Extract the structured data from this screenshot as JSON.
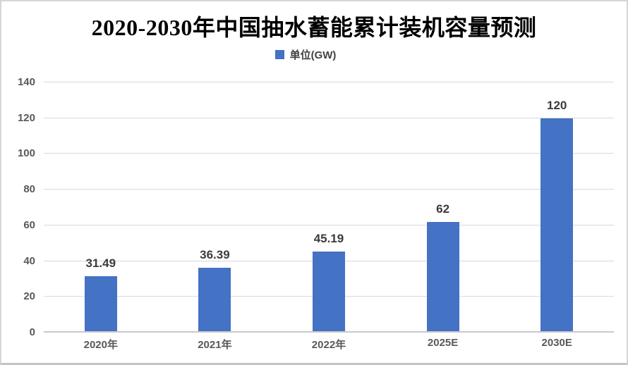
{
  "title": "2020-2030年中国抽水蓄能累计装机容量预测",
  "legend": {
    "label": "单位(GW)",
    "swatch_color": "#4472C4"
  },
  "chart_data": {
    "type": "bar",
    "title": "2020-2030年中国抽水蓄能累计装机容量预测",
    "categories": [
      "2020年",
      "2021年",
      "2022年",
      "2025E",
      "2030E"
    ],
    "values": [
      31.49,
      36.39,
      45.19,
      62,
      120
    ],
    "data_labels": [
      "31.49",
      "36.39",
      "45.19",
      "62",
      "120"
    ],
    "xlabel": "",
    "ylabel": "",
    "ylim": [
      0,
      140
    ],
    "yticks": [
      0,
      20,
      40,
      60,
      80,
      100,
      120,
      140
    ],
    "ytick_labels": [
      "0",
      "20",
      "40",
      "60",
      "80",
      "100",
      "120",
      "140"
    ],
    "legend_entries": [
      "单位(GW)"
    ],
    "legend_position": "top-center",
    "grid": true,
    "bar_color": "#4472C4",
    "gridline_color": "#d9d9d9",
    "label_color": "#595959",
    "data_label_color": "#3b3b3b",
    "background_color": "#ffffff"
  }
}
